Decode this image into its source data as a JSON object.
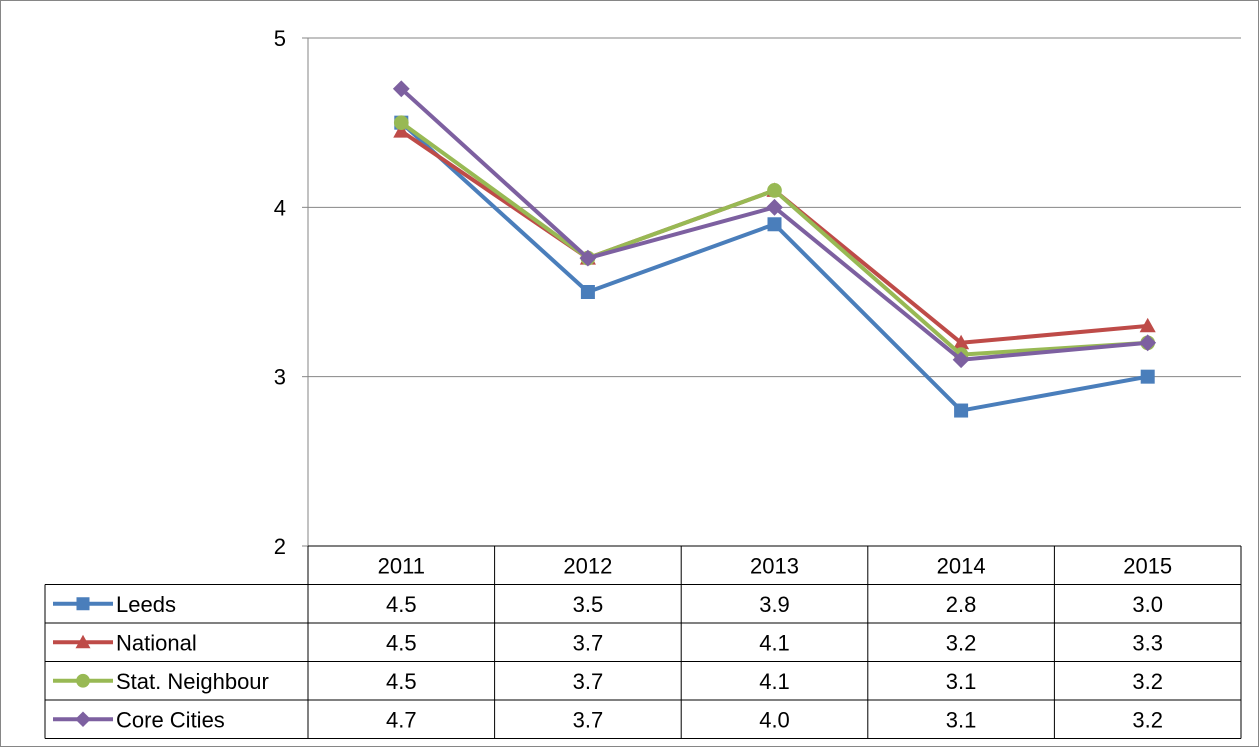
{
  "chart_data": {
    "type": "line",
    "title": "",
    "xlabel": "",
    "ylabel": "",
    "categories": [
      "2011",
      "2012",
      "2013",
      "2014",
      "2015"
    ],
    "ylim": [
      2,
      5
    ],
    "yticks": [
      2,
      3,
      4,
      5
    ],
    "grid": true,
    "legend": "data-table",
    "series": [
      {
        "name": "Leeds",
        "color": "#4a7ebb",
        "marker": "square",
        "values": [
          4.5,
          3.5,
          3.9,
          2.8,
          3.0
        ],
        "labels": [
          "4.5",
          "3.5",
          "3.9",
          "2.8",
          "3.0"
        ]
      },
      {
        "name": "National",
        "color": "#be4b48",
        "marker": "triangle",
        "values": [
          4.45,
          3.7,
          4.1,
          3.2,
          3.3
        ],
        "labels": [
          "4.5",
          "3.7",
          "4.1",
          "3.2",
          "3.3"
        ]
      },
      {
        "name": "Stat. Neighbour",
        "color": "#98b954",
        "marker": "circle",
        "values": [
          4.5,
          3.7,
          4.1,
          3.13,
          3.2
        ],
        "labels": [
          "4.5",
          "3.7",
          "4.1",
          "3.1",
          "3.2"
        ]
      },
      {
        "name": "Core Cities",
        "color": "#7d60a0",
        "marker": "diamond",
        "values": [
          4.7,
          3.7,
          4.0,
          3.1,
          3.2
        ],
        "labels": [
          "4.7",
          "3.7",
          "4.0",
          "3.1",
          "3.2"
        ]
      }
    ]
  }
}
